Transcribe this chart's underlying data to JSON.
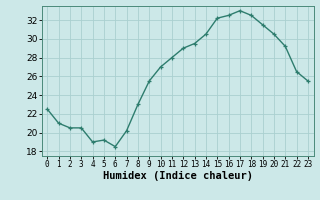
{
  "x": [
    0,
    1,
    2,
    3,
    4,
    5,
    6,
    7,
    8,
    9,
    10,
    11,
    12,
    13,
    14,
    15,
    16,
    17,
    18,
    19,
    20,
    21,
    22,
    23
  ],
  "y": [
    22.5,
    21.0,
    20.5,
    20.5,
    19.0,
    19.2,
    18.5,
    20.2,
    23.0,
    25.5,
    27.0,
    28.0,
    29.0,
    29.5,
    30.5,
    32.2,
    32.5,
    33.0,
    32.5,
    31.5,
    30.5,
    29.2,
    26.5,
    25.5
  ],
  "line_color": "#2e7d6e",
  "marker": "+",
  "bg_color": "#cce8e8",
  "grid_color": "#aad0d0",
  "xlabel": "Humidex (Indice chaleur)",
  "xlim": [
    -0.5,
    23.5
  ],
  "ylim": [
    17.5,
    33.5
  ],
  "yticks": [
    18,
    20,
    22,
    24,
    26,
    28,
    30,
    32
  ],
  "xticks": [
    0,
    1,
    2,
    3,
    4,
    5,
    6,
    7,
    8,
    9,
    10,
    11,
    12,
    13,
    14,
    15,
    16,
    17,
    18,
    19,
    20,
    21,
    22,
    23
  ],
  "linewidth": 1.0,
  "markersize": 3.5,
  "tick_labelsize": 6.5,
  "xlabel_fontsize": 7.5
}
